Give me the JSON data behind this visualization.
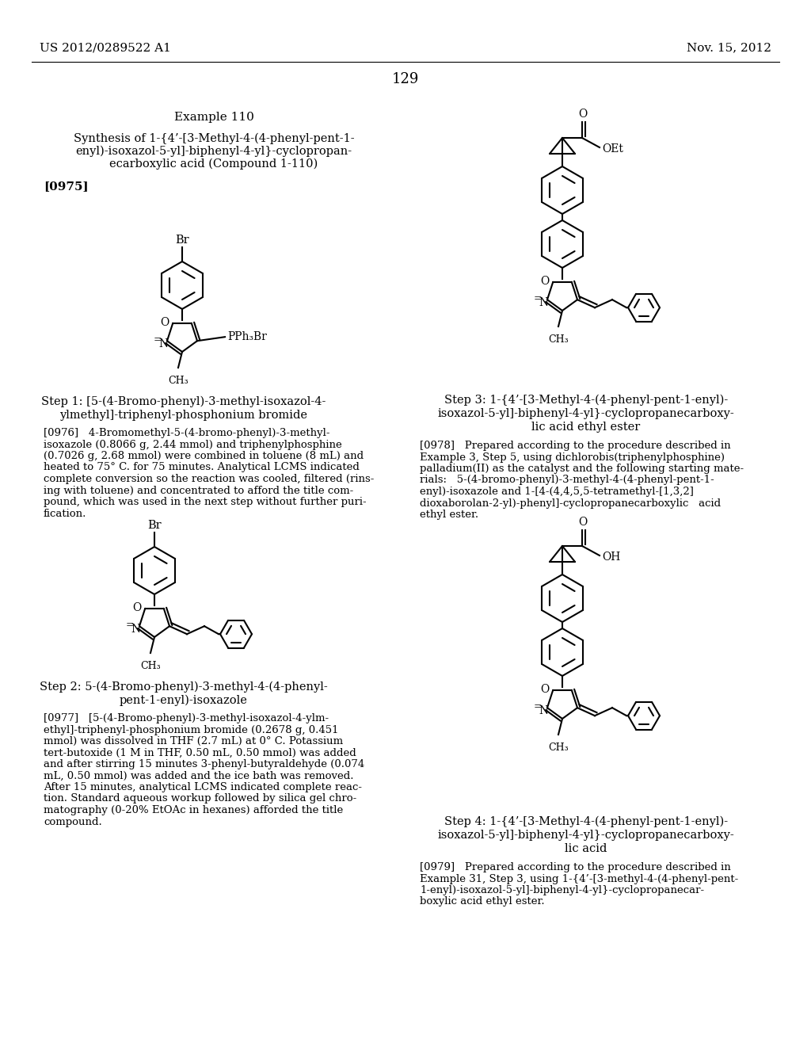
{
  "background_color": "#ffffff",
  "header_left": "US 2012/0289522 A1",
  "header_right": "Nov. 15, 2012",
  "page_number": "129",
  "example_title": "Example 110",
  "synthesis_line1": "Synthesis of 1-{4’-[3-Methyl-4-(4-phenyl-pent-1-",
  "synthesis_line2": "enyl)-isoxazol-5-yl]-biphenyl-4-yl}-cyclopropan-",
  "synthesis_line3": "ecarboxylic acid (Compound 1-110)",
  "para_0975": "[0975]",
  "step1_line1": "Step 1: [5-(4-Bromo-phenyl)-3-methyl-isoxazol-4-",
  "step1_line2": "ylmethyl]-triphenyl-phosphonium bromide",
  "para_0976_lines": [
    "[0976]   4-Bromomethyl-5-(4-bromo-phenyl)-3-methyl-",
    "isoxazole (0.8066 g, 2.44 mmol) and triphenylphosphine",
    "(0.7026 g, 2.68 mmol) were combined in toluene (8 mL) and",
    "heated to 75° C. for 75 minutes. Analytical LCMS indicated",
    "complete conversion so the reaction was cooled, filtered (rins-",
    "ing with toluene) and concentrated to afford the title com-",
    "pound, which was used in the next step without further puri-",
    "fication."
  ],
  "step2_line1": "Step 2: 5-(4-Bromo-phenyl)-3-methyl-4-(4-phenyl-",
  "step2_line2": "pent-1-enyl)-isoxazole",
  "para_0977_lines": [
    "[0977]   [5-(4-Bromo-phenyl)-3-methyl-isoxazol-4-ylm-",
    "ethyl]-triphenyl-phosphonium bromide (0.2678 g, 0.451",
    "mmol) was dissolved in THF (2.7 mL) at 0° C. Potassium",
    "tert-butoxide (1 M in THF, 0.50 mL, 0.50 mmol) was added",
    "and after stirring 15 minutes 3-phenyl-butyraldehyde (0.074",
    "mL, 0.50 mmol) was added and the ice bath was removed.",
    "After 15 minutes, analytical LCMS indicated complete reac-",
    "tion. Standard aqueous workup followed by silica gel chro-",
    "matography (0-20% EtOAc in hexanes) afforded the title",
    "compound."
  ],
  "step3_line1": "Step 3: 1-{4’-[3-Methyl-4-(4-phenyl-pent-1-enyl)-",
  "step3_line2": "isoxazol-5-yl]-biphenyl-4-yl}-cyclopropanecarboxy-",
  "step3_line3": "lic acid ethyl ester",
  "para_0978_lines": [
    "[0978]   Prepared according to the procedure described in",
    "Example 3, Step 5, using dichlorobis(triphenylphosphine)",
    "palladium(II) as the catalyst and the following starting mate-",
    "rials:   5-(4-bromo-phenyl)-3-methyl-4-(4-phenyl-pent-1-",
    "enyl)-isoxazole and 1-[4-(4,4,5,5-tetramethyl-[1,3,2]",
    "dioxaborolan-2-yl)-phenyl]-cyclopropanecarboxylic   acid",
    "ethyl ester."
  ],
  "step4_line1": "Step 4: 1-{4’-[3-Methyl-4-(4-phenyl-pent-1-enyl)-",
  "step4_line2": "isoxazol-5-yl]-biphenyl-4-yl}-cyclopropanecarboxy-",
  "step4_line3": "lic acid",
  "para_0979_lines": [
    "[0979]   Prepared according to the procedure described in",
    "Example 31, Step 3, using 1-{4’-[3-methyl-4-(4-phenyl-pent-",
    "1-enyl)-isoxazol-5-yl]-biphenyl-4-yl}-cyclopropanecar-",
    "boxylic acid ethyl ester."
  ]
}
